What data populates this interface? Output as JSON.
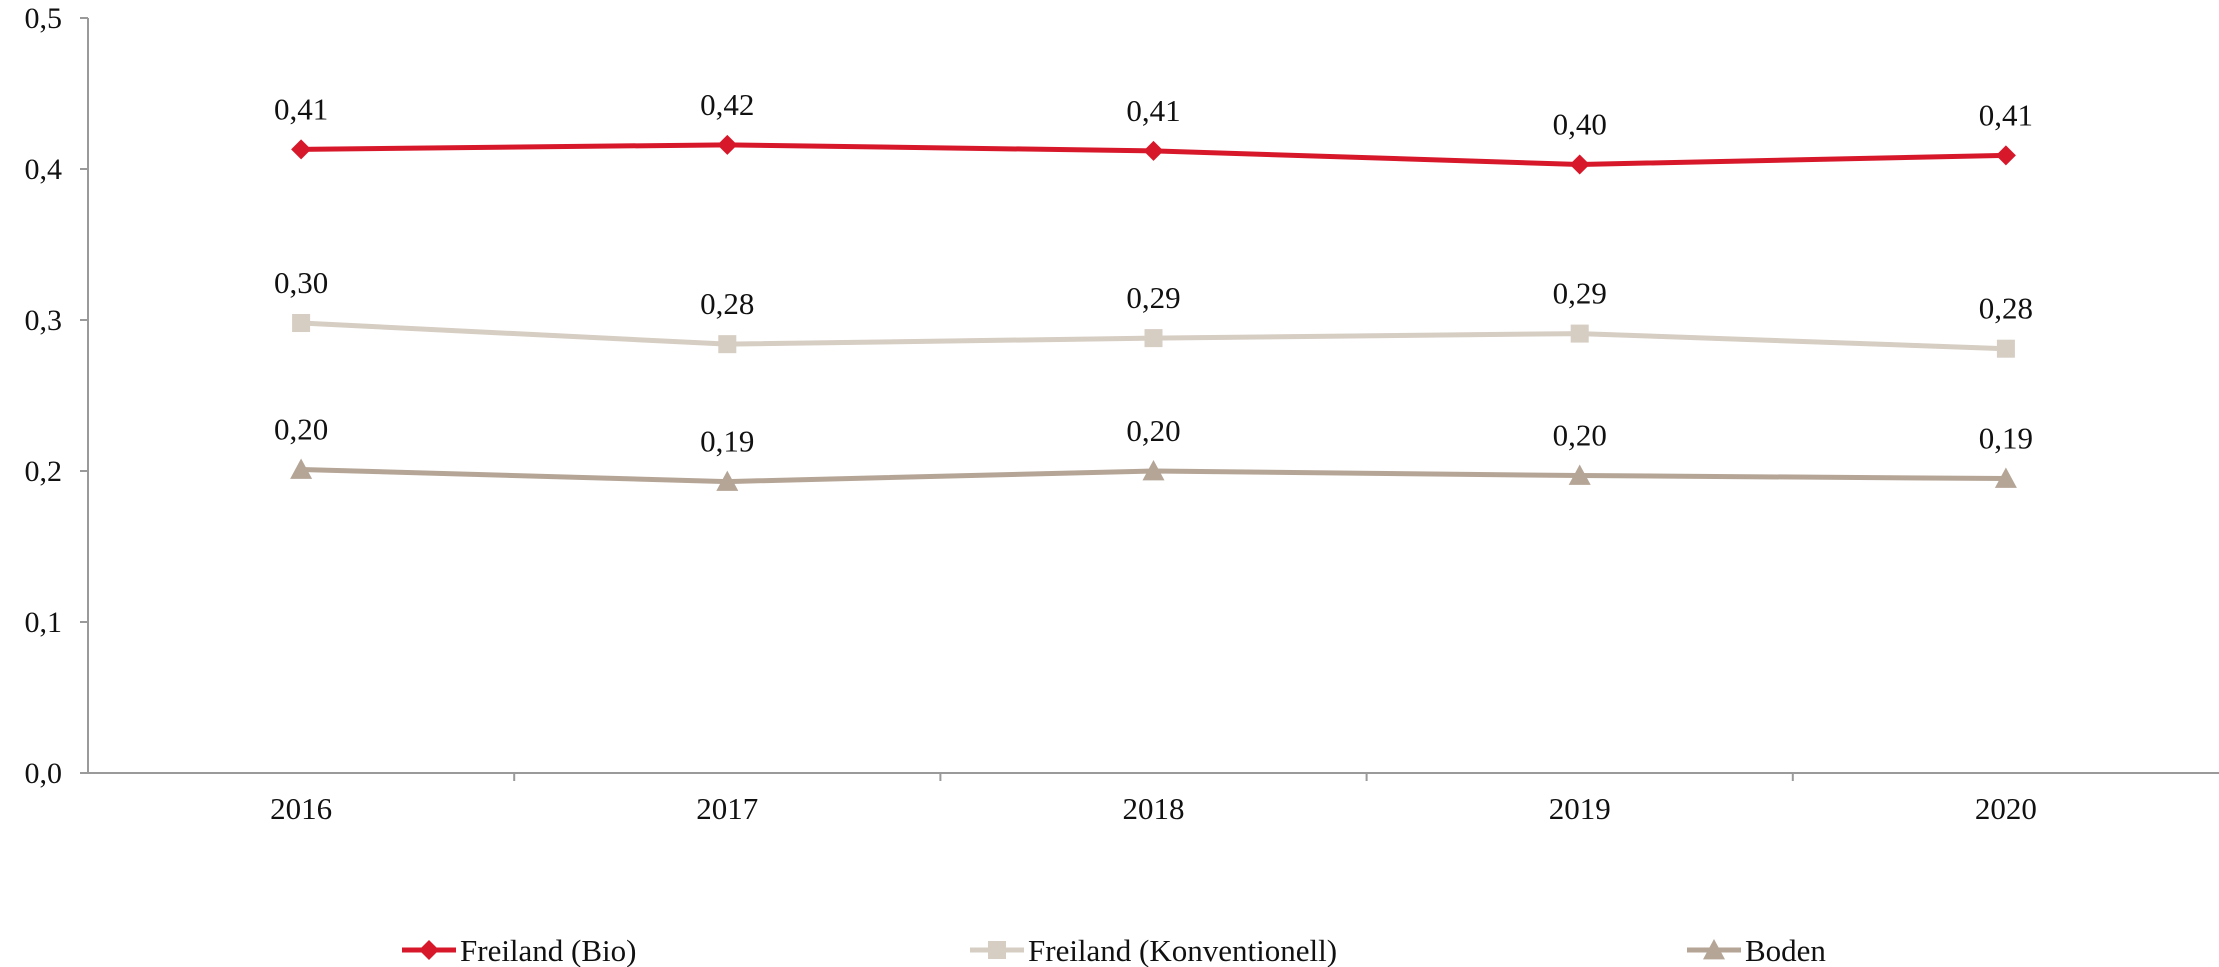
{
  "chart_data": {
    "type": "line",
    "categories": [
      "2016",
      "2017",
      "2018",
      "2019",
      "2020"
    ],
    "series": [
      {
        "name": "Freiland (Bio)",
        "values": [
          0.413,
          0.416,
          0.412,
          0.403,
          0.409
        ],
        "labels": [
          "0,41",
          "0,42",
          "0,41",
          "0,40",
          "0,41"
        ],
        "color": "#d7182a",
        "marker": "diamond"
      },
      {
        "name": "Freiland (Konventionell)",
        "values": [
          0.298,
          0.284,
          0.288,
          0.291,
          0.281
        ],
        "labels": [
          "0,30",
          "0,28",
          "0,29",
          "0,29",
          "0,28"
        ],
        "color": "#d6cdc3",
        "marker": "square"
      },
      {
        "name": "Boden",
        "values": [
          0.201,
          0.193,
          0.2,
          0.197,
          0.195
        ],
        "labels": [
          "0,20",
          "0,19",
          "0,20",
          "0,20",
          "0,19"
        ],
        "color": "#b5a596",
        "marker": "triangle"
      }
    ],
    "y_ticks": [
      "0,0",
      "0,1",
      "0,2",
      "0,3",
      "0,4",
      "0,5"
    ],
    "ylim": [
      0,
      0.5
    ],
    "grid": false,
    "legend": "bottom",
    "title": "",
    "xlabel": "",
    "ylabel": ""
  }
}
